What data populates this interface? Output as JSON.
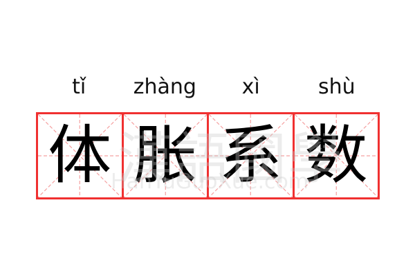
{
  "pinyin": [
    "tǐ",
    "zhàng",
    "xì",
    "shù"
  ],
  "characters": [
    "体",
    "胀",
    "系",
    "数"
  ],
  "watermark": {
    "chinese": "漢語國學",
    "latin": "HanYuGuoXue.com"
  },
  "colors": {
    "grid_border": "#f03030",
    "guide_lines": "#f5a0a0",
    "text": "#000000"
  }
}
